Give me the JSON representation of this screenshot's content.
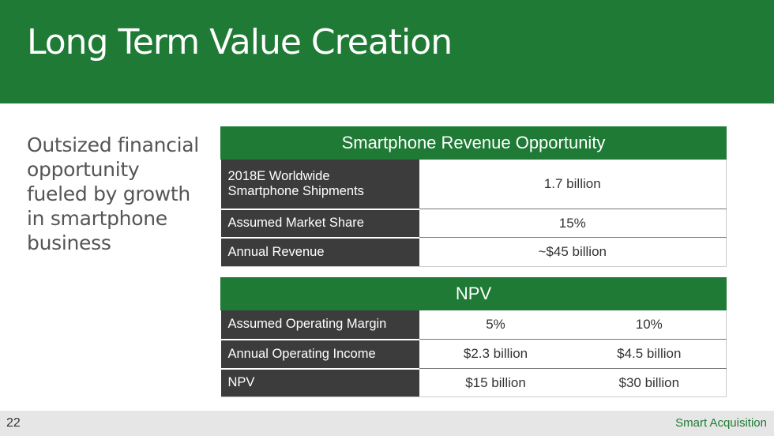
{
  "slide": {
    "title": "Long Term Value Creation",
    "subtitle_lines": [
      "Outsized financial",
      "opportunity",
      "fueled by growth",
      "in smartphone",
      "business"
    ]
  },
  "revenue_table": {
    "title": "Smartphone Revenue Opportunity",
    "rows": [
      {
        "label_lines": [
          "2018E Worldwide",
          "Smartphone Shipments"
        ],
        "value": "1.7 billion"
      },
      {
        "label_lines": [
          "Assumed Market Share"
        ],
        "value": "15%"
      },
      {
        "label_lines": [
          "Annual Revenue"
        ],
        "value": "~$45 billion"
      }
    ]
  },
  "npv_table": {
    "title": "NPV",
    "rows": [
      {
        "label": "Assumed Operating Margin",
        "values": [
          "5%",
          "10%"
        ]
      },
      {
        "label": "Annual Operating Income",
        "values": [
          "$2.3 billion",
          "$4.5 billion"
        ]
      },
      {
        "label": "NPV",
        "values": [
          "$15 billion",
          "$30 billion"
        ]
      }
    ]
  },
  "footer": {
    "page_number": "22",
    "brand": "Smart Acquisition"
  },
  "colors": {
    "accent_green": "#1e7a34",
    "label_dark": "#3c3c3c"
  }
}
